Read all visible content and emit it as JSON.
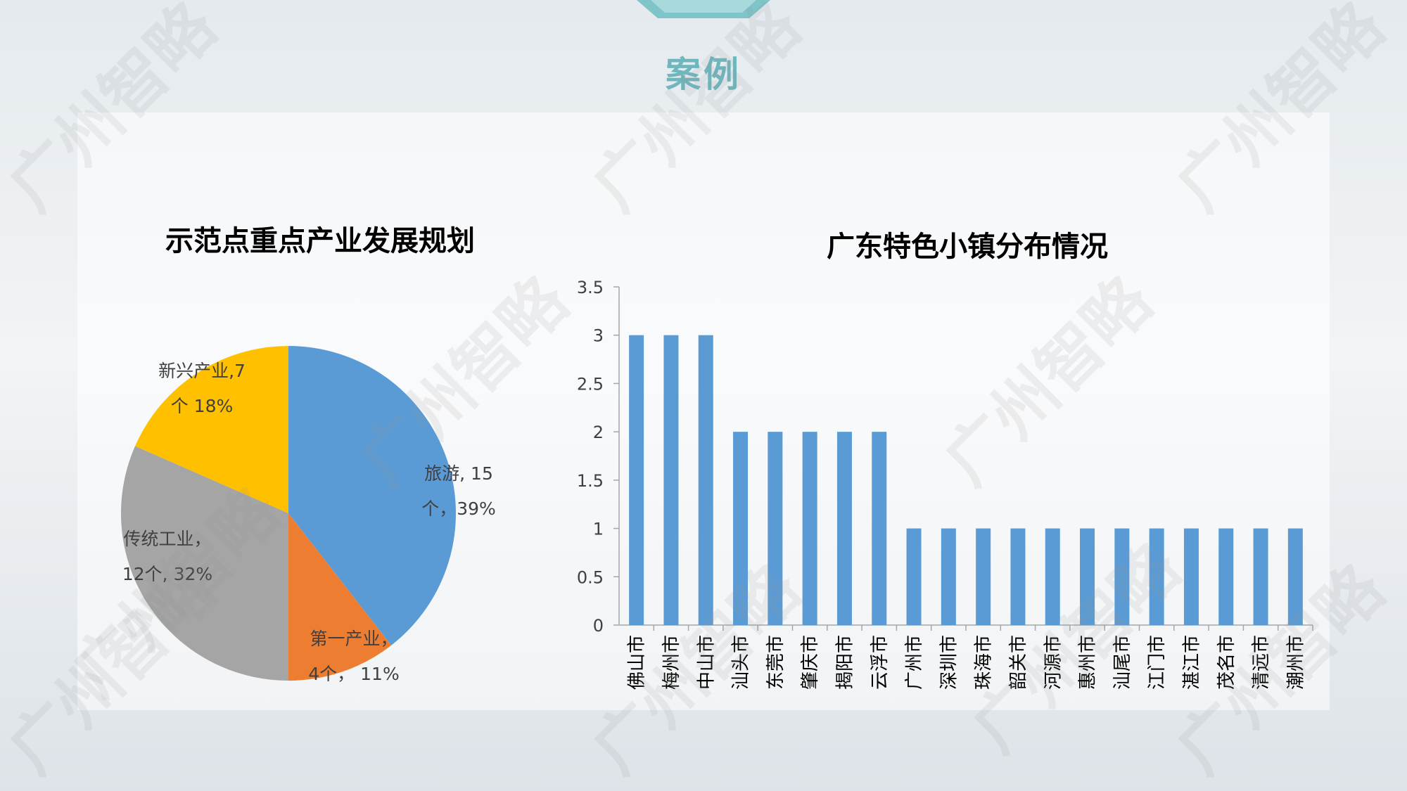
{
  "slide": {
    "title": "案例"
  },
  "watermark_text": "广州智略",
  "colors": {
    "bar": "#5b9bd5",
    "title": "#6fb6bd",
    "axis": "#a6a6a6",
    "text": "#404040"
  },
  "chart_data": [
    {
      "type": "pie",
      "title": "示范点重点产业发展规划",
      "slices": [
        {
          "name": "旅游",
          "value": 15,
          "percent": 39,
          "color": "#5b9bd5",
          "label_lines": [
            "旅游, 15",
            "个，39%"
          ]
        },
        {
          "name": "第一产业",
          "value": 4,
          "percent": 11,
          "color": "#ed7d31",
          "label_lines": [
            "第一产业，",
            "4个， 11%"
          ]
        },
        {
          "name": "传统工业",
          "value": 12,
          "percent": 32,
          "color": "#a5a5a5",
          "label_lines": [
            "传统工业，",
            "12个, 32%"
          ]
        },
        {
          "name": "新兴产业",
          "value": 7,
          "percent": 18,
          "color": "#ffc000",
          "label_lines": [
            "新兴产业,7",
            "个 18%"
          ]
        }
      ]
    },
    {
      "type": "bar",
      "title": "广东特色小镇分布情况",
      "categories": [
        "佛山市",
        "梅州市",
        "中山市",
        "汕头市",
        "东莞市",
        "肇庆市",
        "揭阳市",
        "云浮市",
        "广州市",
        "深圳市",
        "珠海市",
        "韶关市",
        "河源市",
        "惠州市",
        "汕尾市",
        "江门市",
        "湛江市",
        "茂名市",
        "清远市",
        "潮州市"
      ],
      "values": [
        3,
        3,
        3,
        2,
        2,
        2,
        2,
        2,
        1,
        1,
        1,
        1,
        1,
        1,
        1,
        1,
        1,
        1,
        1,
        1
      ],
      "ylim": [
        0,
        3.5
      ],
      "yticks": [
        "0",
        "0.5",
        "1",
        "1.5",
        "2",
        "2.5",
        "3",
        "3.5"
      ],
      "grid": false,
      "legend": "none"
    }
  ]
}
